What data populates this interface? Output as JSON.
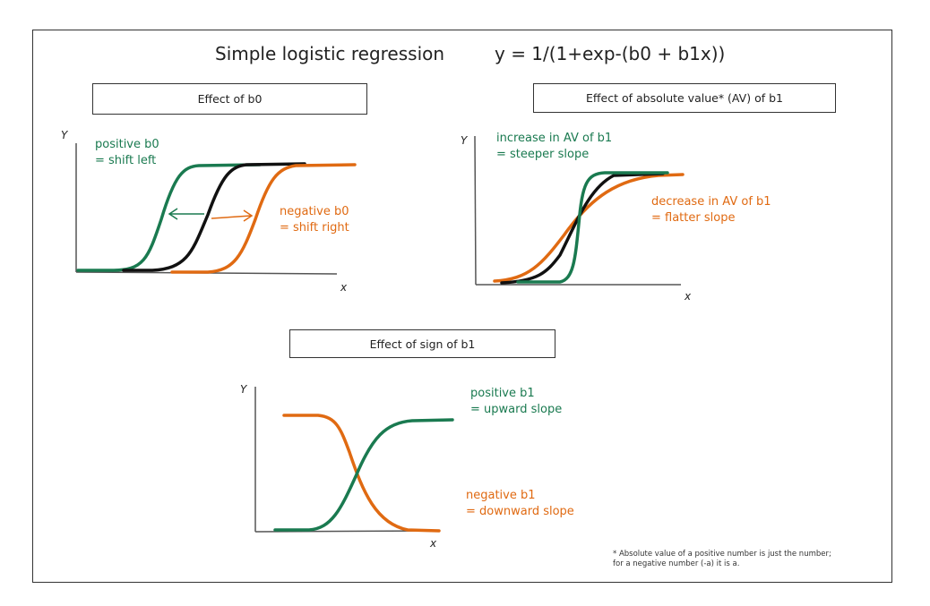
{
  "title": "Simple logistic regression",
  "formula": "y = 1/(1+exp-(b0 + b1x))",
  "panels": {
    "p1": {
      "header": "Effect of b0",
      "y_label": "Y",
      "x_label": "x",
      "green_label": [
        "positive b0",
        "= shift left"
      ],
      "orange_label": [
        "negative b0",
        "= shift right"
      ]
    },
    "p2": {
      "header": "Effect of absolute value* (AV) of b1",
      "y_label": "Y",
      "x_label": "x",
      "green_label": [
        "increase in AV of b1",
        "= steeper slope"
      ],
      "orange_label": [
        "decrease in AV of b1",
        "= flatter slope"
      ]
    },
    "p3": {
      "header": "Effect of sign of b1",
      "y_label": "Y",
      "x_label": "x",
      "green_label": [
        "positive b1",
        "= upward slope"
      ],
      "orange_label": [
        "negative b1",
        "= downward slope"
      ]
    }
  },
  "footnote": [
    "* Absolute value of a positive number is just the number;",
    "for a negative number (-a) it is a."
  ],
  "colors": {
    "green": "#1a7a50",
    "orange": "#e06a12",
    "black": "#111111",
    "axis": "#555555"
  }
}
